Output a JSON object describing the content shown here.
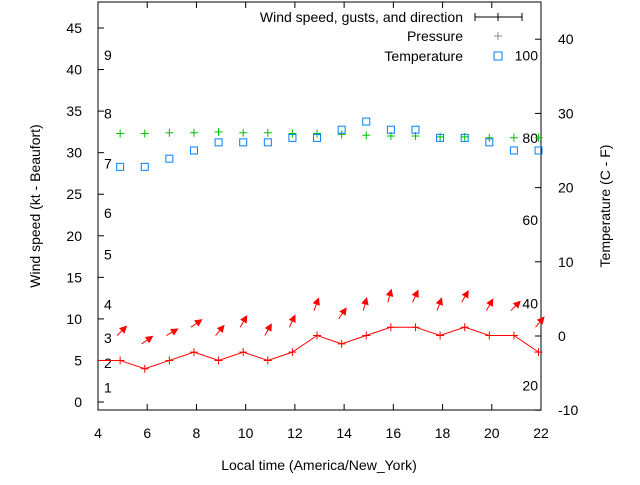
{
  "chart_data": {
    "type": "line",
    "xlabel": "Local time (America/New_York)",
    "ylabel": "Wind speed (kt - Beaufort)",
    "y2label": "Temperature (C - F)",
    "xlim": [
      4,
      22
    ],
    "ylim": [
      -1,
      48
    ],
    "y2lim": [
      -10,
      45
    ],
    "x_ticks": [
      4,
      6,
      8,
      10,
      12,
      14,
      16,
      18,
      20,
      22
    ],
    "y_ticks": [
      0,
      5,
      10,
      15,
      20,
      25,
      30,
      35,
      40,
      45
    ],
    "y2_ticks": [
      -10,
      0,
      10,
      20,
      30,
      40
    ],
    "beaufort_labels": [
      {
        "label": "1",
        "kt": 1
      },
      {
        "label": "2",
        "kt": 4
      },
      {
        "label": "3",
        "kt": 7
      },
      {
        "label": "4",
        "kt": 11
      },
      {
        "label": "5",
        "kt": 17
      },
      {
        "label": "6",
        "kt": 22
      },
      {
        "label": "7",
        "kt": 28
      },
      {
        "label": "8",
        "kt": 34
      },
      {
        "label": "9",
        "kt": 41
      }
    ],
    "fahrenheit_labels": [
      {
        "label": "20",
        "c": -6.7
      },
      {
        "label": "40",
        "c": 4.4
      },
      {
        "label": "60",
        "c": 15.6
      },
      {
        "label": "80",
        "c": 26.7
      },
      {
        "label": "100",
        "c": 37.8
      }
    ],
    "legend": {
      "position": "top-right",
      "entries": [
        "Wind speed, gusts, and direction",
        "Pressure",
        "Temperature"
      ]
    },
    "x": [
      4.9,
      5.9,
      6.9,
      7.9,
      8.9,
      9.9,
      10.9,
      11.9,
      12.9,
      13.9,
      14.9,
      15.9,
      16.9,
      17.9,
      18.9,
      19.9,
      20.9,
      21.9
    ],
    "series": [
      {
        "name": "Wind speed, gusts, and direction",
        "color": "#ff0000",
        "values": [
          5,
          4,
          5,
          6,
          5,
          6,
          5,
          6,
          8,
          7,
          8,
          9,
          9,
          8,
          9,
          8,
          8,
          6
        ],
        "direction_to_deg": [
          45,
          55,
          60,
          55,
          40,
          30,
          30,
          25,
          20,
          35,
          15,
          15,
          25,
          20,
          30,
          30,
          45,
          40
        ]
      },
      {
        "name": "Pressure",
        "color": "#00c000",
        "values": [
          32.3,
          32.3,
          32.4,
          32.4,
          32.5,
          32.4,
          32.4,
          32.3,
          32.3,
          32.2,
          32.1,
          32.0,
          32.0,
          31.9,
          31.9,
          31.8,
          31.8,
          31.8
        ]
      },
      {
        "name": "Temperature",
        "color": "#0080ff",
        "axis": "y2",
        "values": [
          22.8,
          22.8,
          23.9,
          25.0,
          26.1,
          26.1,
          26.1,
          26.7,
          26.7,
          27.8,
          28.9,
          27.8,
          27.8,
          26.7,
          26.7,
          26.1,
          25.0,
          25.0
        ]
      }
    ]
  }
}
